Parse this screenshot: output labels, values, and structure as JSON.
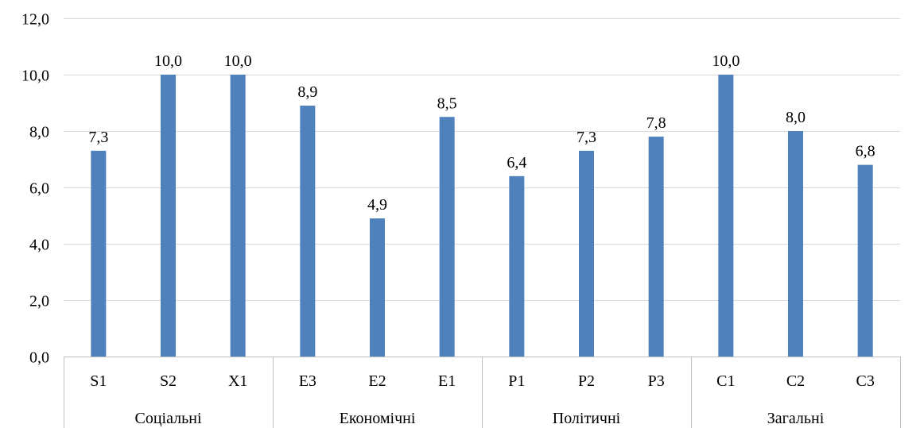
{
  "chart_data": {
    "type": "bar",
    "categories": [
      "S1",
      "S2",
      "X1",
      "E3",
      "E2",
      "E1",
      "P1",
      "P2",
      "P3",
      "C1",
      "C2",
      "C3"
    ],
    "groups": [
      {
        "label": "Соціальні",
        "count": 3
      },
      {
        "label": "Економічні",
        "count": 3
      },
      {
        "label": "Політичні",
        "count": 3
      },
      {
        "label": "Загальні",
        "count": 3
      }
    ],
    "values": [
      7.3,
      10.0,
      10.0,
      8.9,
      4.9,
      8.5,
      6.4,
      7.3,
      7.8,
      10.0,
      8.0,
      6.8
    ],
    "value_labels": [
      "7,3",
      "10,0",
      "10,0",
      "8,9",
      "4,9",
      "8,5",
      "6,4",
      "7,3",
      "7,8",
      "10,0",
      "8,0",
      "6,8"
    ],
    "yticks": [
      0,
      2,
      4,
      6,
      8,
      10,
      12
    ],
    "ytick_labels": [
      "0,0",
      "2,0",
      "4,0",
      "6,0",
      "8,0",
      "10,0",
      "12,0"
    ],
    "ylim": [
      0,
      12
    ],
    "grid": true,
    "title": "",
    "xlabel": "",
    "ylabel": "",
    "bar_color": "#4f81bd",
    "grid_color": "#d9d9d9",
    "axis_color": "#bfbfbf"
  }
}
